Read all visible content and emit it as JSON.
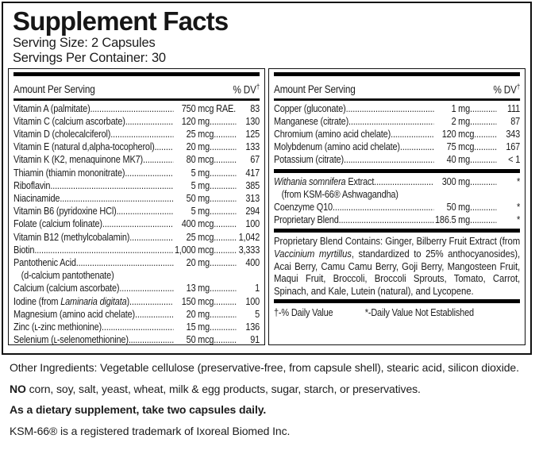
{
  "header": {
    "title": "Supplement Facts",
    "serving_size": "Serving Size: 2 Capsules",
    "servings_per_container": "Servings Per Container: 30"
  },
  "column_header": {
    "amount_label": "Amount Per Serving",
    "dv_label": "% DV",
    "dv_dagger": "†"
  },
  "left_rows": [
    {
      "n1": "Vitamin A (palmitate)",
      "num": "750",
      "unit": "mcg RAE",
      "dv": "83"
    },
    {
      "n1": "Vitamin C (calcium ascorbate) ",
      "num": "120",
      "unit": "mg",
      "dv": "130"
    },
    {
      "n1": "Vitamin D (cholecalciferol) ",
      "num": "25",
      "unit": "mcg",
      "dv": "125"
    },
    {
      "n1": "Vitamin E (natural d,alpha-tocopherol)",
      "num": "20",
      "unit": "mg",
      "dv": "133"
    },
    {
      "n1": "Vitamin K (K2, menaquinone MK7)",
      "num": "80",
      "unit": "mcg",
      "dv": "67"
    },
    {
      "n1": "Thiamin (thiamin mononitrate)",
      "num": "5",
      "unit": "mg",
      "dv": "417"
    },
    {
      "n1": "Riboflavin ",
      "num": "5",
      "unit": "mg",
      "dv": "385"
    },
    {
      "n1": "Niacinamide ",
      "num": "50",
      "unit": "mg",
      "dv": "313"
    },
    {
      "n1": "Vitamin B6 (pyridoxine HCl)",
      "num": "5",
      "unit": "mg",
      "dv": "294"
    },
    {
      "n1": "Folate (calcium folinate)",
      "num": "400",
      "unit": "mcg",
      "dv": "100"
    },
    {
      "n1": "Vitamin B12 (methylcobalamin) ",
      "num": "25",
      "unit": "mcg",
      "dv": "1,042"
    },
    {
      "n1": "Biotin",
      "num": "1,000",
      "unit": "mcg",
      "dv": "3,333"
    },
    {
      "n1": "Pantothenic Acid",
      "num": "20",
      "unit": "mg",
      "dv": "400",
      "sub": "(d-calcium pantothenate)"
    },
    {
      "n1": "Calcium (calcium ascorbate)",
      "num": "13",
      "unit": "mg",
      "dv": "1"
    },
    {
      "n1": "Iodine (from ",
      "i1": "Laminaria digitata",
      "n2": ") ",
      "num": "150",
      "unit": "mcg",
      "dv": "100"
    },
    {
      "n1": "Magnesium (amino acid chelate) ",
      "num": "20",
      "unit": "mg",
      "dv": "5"
    },
    {
      "n1": "Zinc (ʟ-zinc methionine)",
      "num": "15",
      "unit": "mg",
      "dv": "136"
    },
    {
      "n1": "Selenium (ʟ-selenomethionine)",
      "num": "50",
      "unit": "mcg",
      "dv": "91"
    }
  ],
  "right_top_rows": [
    {
      "n1": "Copper (gluconate) ",
      "num": "1",
      "unit": "mg",
      "dv": "111"
    },
    {
      "n1": "Manganese (citrate)",
      "num": "2",
      "unit": "mg",
      "dv": "87"
    },
    {
      "n1": "Chromium (amino acid chelate) ",
      "num": "120",
      "unit": "mcg",
      "dv": "343"
    },
    {
      "n1": "Molybdenum (amino acid chelate) ",
      "num": "75",
      "unit": "mcg",
      "dv": "167"
    },
    {
      "n1": "Potassium (citrate)",
      "num": "40",
      "unit": "mg",
      "dv": "< 1"
    }
  ],
  "right_mid_rows": [
    {
      "n1": "",
      "i1": "Withania somnifera",
      "n2": " Extract",
      "num": "300",
      "unit": "mg",
      "dv": "*",
      "sub": "(from KSM-66® Ashwagandha)"
    },
    {
      "n1": "Coenzyme Q10 ",
      "num": "50",
      "unit": "mg",
      "dv": "*"
    },
    {
      "n1": "Proprietary Blend",
      "num": "186.5",
      "unit": "mg",
      "dv": "*"
    }
  ],
  "blend": {
    "p1": "Proprietary Blend Contains: Ginger, Bilberry Fruit Extract (from ",
    "it": "Vaccinium myrtillus",
    "p2": ", standardized to 25% anthocyanosides), Acai Berry, Camu Camu Berry, Goji Berry, Mangosteen Fruit, Maqui Fruit, Broccoli, Broccoli Sprouts, Tomato, Carrot, Spinach, and Kale, Lutein (natural), and Lycopene."
  },
  "footnotes": {
    "daily_value": "†-% Daily Value",
    "not_established": "*-Daily Value Not Established"
  },
  "bottom": {
    "other_ingredients": "Other Ingredients: Vegetable cellulose (preservative-free, from capsule shell), stearic acid, silicon dioxide.",
    "no_bold": "NO",
    "no_rest": " corn, soy, salt, yeast, wheat, milk & egg products, sugar, starch, or preservatives.",
    "directions": "As a dietary supplement, take two capsules daily.",
    "trademark": "KSM-66® is a registered trademark of Ixoreal Biomed Inc."
  }
}
